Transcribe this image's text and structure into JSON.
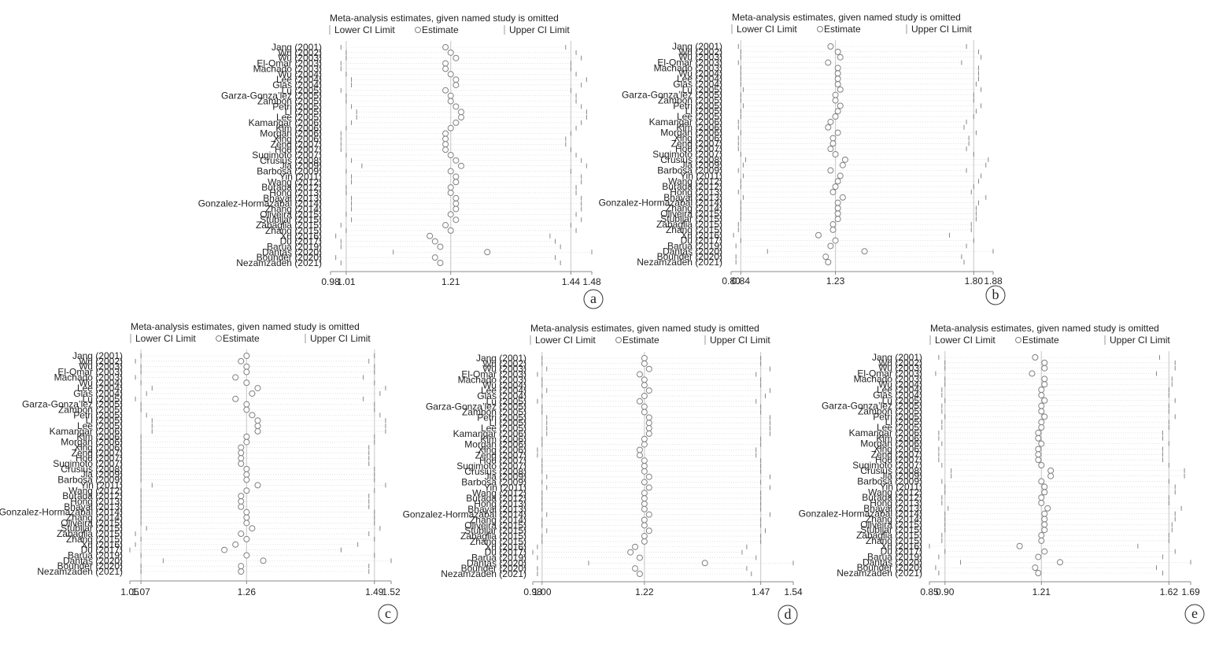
{
  "studies": [
    "Jang (2001)",
    "Wu (2002)",
    "Wu (2003)",
    "El-Omar (2003)",
    "Machado (2003)",
    "Wu (2004)",
    "Lee (2004)",
    "Glas (2004)",
    "Lu (2005)",
    "Garza-Gonza’lez (2005)",
    "Zambon (2005)",
    "Petri (2005)",
    "Li (2005)",
    "Lee (2005)",
    "Kamangar (2006)",
    "Kim (2006)",
    "Morgan (2006)",
    "Xing (2006)",
    "Zeng (2007)",
    "Hou (2007)",
    "Sugimoto (2007)",
    "Crusius (2008)",
    "Jia (2009)",
    "Barbosa (2009)",
    "Yin (2011)",
    "Wang (2012)",
    "Burada (2012)",
    "Hong (2013)",
    "Bhayal (2013)",
    "Gonzalez-Hormazabal (2014)",
    "Zhang (2014)",
    "Oliveira (2015)",
    "Stubljar (2015)",
    "Zabaglia (2015)",
    "Zhang (2015)",
    "Xu (2016)",
    "Du (2017)",
    "Barua (2019)",
    "Dantas (2020)",
    "Bounder (2020)",
    "Nezamzadeh (2021)"
  ],
  "chart_data": [
    {
      "type": "forest",
      "panel": "a",
      "title": "Meta-analysis estimates, given named study is omitted",
      "legend": {
        "lower": "Lower CI Limit",
        "estimate": "Estimate",
        "upper": "Upper CI Limit"
      },
      "xlim": [
        0.98,
        1.48
      ],
      "ticks": [
        {
          "v": 0.98,
          "label": "0.98"
        },
        {
          "v": 1.01,
          "label": "1.01"
        },
        {
          "v": 1.21,
          "label": "1.21"
        },
        {
          "v": 1.44,
          "label": "1.44"
        },
        {
          "v": 1.48,
          "label": "1.48"
        }
      ],
      "estimate": [
        1.2,
        1.21,
        1.22,
        1.2,
        1.2,
        1.21,
        1.22,
        1.22,
        1.2,
        1.21,
        1.21,
        1.22,
        1.23,
        1.23,
        1.22,
        1.21,
        1.2,
        1.2,
        1.2,
        1.2,
        1.21,
        1.22,
        1.23,
        1.21,
        1.22,
        1.22,
        1.21,
        1.21,
        1.22,
        1.22,
        1.22,
        1.21,
        1.22,
        1.2,
        1.21,
        1.17,
        1.18,
        1.19,
        1.28,
        1.18,
        1.19
      ],
      "lower": [
        1.0,
        1.01,
        1.01,
        1.0,
        1.0,
        1.01,
        1.02,
        1.02,
        1.0,
        1.01,
        1.01,
        1.02,
        1.03,
        1.03,
        1.02,
        1.01,
        1.0,
        1.0,
        1.0,
        1.0,
        1.01,
        1.02,
        1.04,
        1.01,
        1.02,
        1.02,
        1.01,
        1.01,
        1.02,
        1.02,
        1.02,
        1.01,
        1.02,
        1.0,
        1.01,
        0.99,
        1.0,
        1.0,
        1.1,
        0.99,
        1.0
      ],
      "upper": [
        1.43,
        1.45,
        1.46,
        1.44,
        1.44,
        1.45,
        1.47,
        1.46,
        1.44,
        1.45,
        1.45,
        1.46,
        1.47,
        1.47,
        1.46,
        1.45,
        1.44,
        1.43,
        1.43,
        1.44,
        1.45,
        1.46,
        1.47,
        1.44,
        1.46,
        1.46,
        1.45,
        1.45,
        1.46,
        1.46,
        1.46,
        1.45,
        1.46,
        1.44,
        1.45,
        1.4,
        1.41,
        1.42,
        1.48,
        1.41,
        1.42
      ],
      "reference": {
        "lower": 1.01,
        "estimate": 1.21,
        "upper": 1.44
      }
    },
    {
      "type": "forest",
      "panel": "b",
      "title": "Meta-analysis estimates, given named study is omitted",
      "legend": {
        "lower": "Lower CI Limit",
        "estimate": "Estimate",
        "upper": "Upper CI Limit"
      },
      "xlim": [
        0.8,
        1.88
      ],
      "ticks": [
        {
          "v": 0.8,
          "label": "0.80"
        },
        {
          "v": 0.84,
          "label": "0.84"
        },
        {
          "v": 1.23,
          "label": "1.23"
        },
        {
          "v": 1.8,
          "label": "1.80"
        },
        {
          "v": 1.88,
          "label": "1.88"
        }
      ],
      "estimate": [
        1.21,
        1.24,
        1.25,
        1.2,
        1.24,
        1.24,
        1.24,
        1.24,
        1.25,
        1.23,
        1.23,
        1.25,
        1.24,
        1.23,
        1.21,
        1.2,
        1.24,
        1.22,
        1.22,
        1.21,
        1.23,
        1.27,
        1.26,
        1.21,
        1.25,
        1.24,
        1.23,
        1.22,
        1.26,
        1.24,
        1.24,
        1.24,
        1.24,
        1.22,
        1.22,
        1.16,
        1.23,
        1.21,
        1.35,
        1.19,
        1.2
      ],
      "lower": [
        0.83,
        0.84,
        0.84,
        0.83,
        0.84,
        0.84,
        0.84,
        0.84,
        0.85,
        0.84,
        0.84,
        0.85,
        0.84,
        0.84,
        0.83,
        0.83,
        0.84,
        0.83,
        0.83,
        0.83,
        0.84,
        0.86,
        0.85,
        0.83,
        0.85,
        0.84,
        0.84,
        0.83,
        0.85,
        0.84,
        0.84,
        0.84,
        0.84,
        0.83,
        0.83,
        0.81,
        0.84,
        0.82,
        0.95,
        0.82,
        0.82
      ],
      "upper": [
        1.77,
        1.82,
        1.83,
        1.75,
        1.82,
        1.82,
        1.82,
        1.81,
        1.83,
        1.8,
        1.8,
        1.83,
        1.81,
        1.8,
        1.77,
        1.76,
        1.81,
        1.78,
        1.78,
        1.77,
        1.8,
        1.86,
        1.85,
        1.77,
        1.83,
        1.82,
        1.8,
        1.79,
        1.85,
        1.82,
        1.81,
        1.81,
        1.81,
        1.79,
        1.79,
        1.7,
        1.8,
        1.77,
        1.88,
        1.75,
        1.76
      ],
      "reference": {
        "lower": 0.84,
        "estimate": 1.23,
        "upper": 1.8
      }
    },
    {
      "type": "forest",
      "panel": "c",
      "title": "Meta-analysis estimates, given named study is omitted",
      "legend": {
        "lower": "Lower CI Limit",
        "estimate": "Estimate",
        "upper": "Upper CI Limit"
      },
      "xlim": [
        1.05,
        1.52
      ],
      "ticks": [
        {
          "v": 1.05,
          "label": "1.05"
        },
        {
          "v": 1.07,
          "label": "1.07"
        },
        {
          "v": 1.26,
          "label": "1.26"
        },
        {
          "v": 1.49,
          "label": "1.49"
        },
        {
          "v": 1.52,
          "label": "1.52"
        }
      ],
      "estimate": [
        1.26,
        1.25,
        1.26,
        1.26,
        1.24,
        1.26,
        1.28,
        1.27,
        1.24,
        1.26,
        1.26,
        1.27,
        1.28,
        1.28,
        1.28,
        1.26,
        1.26,
        1.25,
        1.25,
        1.25,
        1.25,
        1.26,
        1.26,
        1.26,
        1.28,
        1.26,
        1.25,
        1.25,
        1.25,
        1.26,
        1.26,
        1.26,
        1.27,
        1.25,
        1.26,
        1.24,
        1.22,
        1.26,
        1.29,
        1.25,
        1.25
      ],
      "lower": [
        1.07,
        1.06,
        1.07,
        1.07,
        1.06,
        1.07,
        1.09,
        1.08,
        1.06,
        1.07,
        1.07,
        1.08,
        1.09,
        1.09,
        1.09,
        1.07,
        1.07,
        1.07,
        1.07,
        1.07,
        1.07,
        1.07,
        1.07,
        1.07,
        1.09,
        1.07,
        1.07,
        1.07,
        1.07,
        1.07,
        1.07,
        1.07,
        1.08,
        1.06,
        1.07,
        1.06,
        1.05,
        1.07,
        1.11,
        1.07,
        1.07
      ],
      "upper": [
        1.49,
        1.48,
        1.49,
        1.49,
        1.47,
        1.49,
        1.51,
        1.5,
        1.47,
        1.49,
        1.49,
        1.5,
        1.51,
        1.51,
        1.51,
        1.49,
        1.49,
        1.48,
        1.48,
        1.48,
        1.48,
        1.49,
        1.49,
        1.49,
        1.51,
        1.49,
        1.48,
        1.48,
        1.48,
        1.49,
        1.49,
        1.49,
        1.5,
        1.48,
        1.49,
        1.46,
        1.43,
        1.49,
        1.52,
        1.48,
        1.48
      ],
      "reference": {
        "lower": 1.07,
        "estimate": 1.26,
        "upper": 1.49
      }
    },
    {
      "type": "forest",
      "panel": "d",
      "title": "Meta-analysis estimates, given named study is omitted",
      "legend": {
        "lower": "Lower CI Limit",
        "estimate": "Estimate",
        "upper": "Upper CI Limit"
      },
      "xlim": [
        0.98,
        1.54
      ],
      "ticks": [
        {
          "v": 0.98,
          "label": "0.98"
        },
        {
          "v": 1.0,
          "label": "1.00"
        },
        {
          "v": 1.22,
          "label": "1.22"
        },
        {
          "v": 1.47,
          "label": "1.47"
        },
        {
          "v": 1.54,
          "label": "1.54"
        }
      ],
      "estimate": [
        1.22,
        1.22,
        1.23,
        1.21,
        1.22,
        1.22,
        1.23,
        1.22,
        1.21,
        1.22,
        1.22,
        1.23,
        1.23,
        1.23,
        1.23,
        1.22,
        1.22,
        1.21,
        1.21,
        1.22,
        1.22,
        1.22,
        1.23,
        1.22,
        1.23,
        1.22,
        1.22,
        1.22,
        1.22,
        1.23,
        1.22,
        1.22,
        1.23,
        1.22,
        1.22,
        1.2,
        1.19,
        1.21,
        1.35,
        1.2,
        1.21
      ],
      "lower": [
        1.0,
        1.0,
        1.01,
        0.99,
        1.0,
        1.0,
        1.01,
        1.0,
        0.99,
        1.0,
        1.0,
        1.01,
        1.01,
        1.01,
        1.01,
        1.0,
        1.0,
        0.99,
        0.99,
        1.0,
        1.0,
        1.0,
        1.01,
        1.0,
        1.01,
        1.0,
        1.0,
        1.0,
        1.0,
        1.01,
        1.0,
        1.0,
        1.01,
        1.0,
        1.0,
        0.99,
        0.98,
        0.99,
        1.1,
        0.99,
        0.99
      ],
      "upper": [
        1.47,
        1.47,
        1.49,
        1.46,
        1.47,
        1.47,
        1.49,
        1.48,
        1.46,
        1.47,
        1.47,
        1.49,
        1.49,
        1.49,
        1.49,
        1.47,
        1.47,
        1.46,
        1.46,
        1.47,
        1.47,
        1.47,
        1.49,
        1.47,
        1.49,
        1.47,
        1.47,
        1.47,
        1.47,
        1.49,
        1.47,
        1.47,
        1.48,
        1.47,
        1.47,
        1.44,
        1.43,
        1.46,
        1.54,
        1.44,
        1.45
      ],
      "reference": {
        "lower": 1.0,
        "estimate": 1.22,
        "upper": 1.47
      }
    },
    {
      "type": "forest",
      "panel": "e",
      "title": "Meta-analysis estimates, given named study is omitted",
      "legend": {
        "lower": "Lower CI Limit",
        "estimate": "Estimate",
        "upper": "Upper CI Limit"
      },
      "xlim": [
        0.85,
        1.69
      ],
      "ticks": [
        {
          "v": 0.85,
          "label": "0.85"
        },
        {
          "v": 0.9,
          "label": "0.90"
        },
        {
          "v": 1.21,
          "label": "1.21"
        },
        {
          "v": 1.62,
          "label": "1.62"
        },
        {
          "v": 1.69,
          "label": "1.69"
        }
      ],
      "estimate": [
        1.19,
        1.22,
        1.22,
        1.18,
        1.22,
        1.22,
        1.21,
        1.21,
        1.22,
        1.21,
        1.21,
        1.22,
        1.21,
        1.21,
        1.2,
        1.2,
        1.21,
        1.2,
        1.2,
        1.2,
        1.21,
        1.24,
        1.24,
        1.21,
        1.22,
        1.22,
        1.21,
        1.21,
        1.23,
        1.22,
        1.22,
        1.22,
        1.22,
        1.21,
        1.21,
        1.14,
        1.22,
        1.2,
        1.27,
        1.19,
        1.2
      ],
      "lower": [
        0.88,
        0.9,
        0.9,
        0.87,
        0.9,
        0.9,
        0.89,
        0.89,
        0.9,
        0.89,
        0.89,
        0.9,
        0.89,
        0.89,
        0.88,
        0.88,
        0.89,
        0.88,
        0.88,
        0.88,
        0.89,
        0.92,
        0.92,
        0.89,
        0.9,
        0.9,
        0.89,
        0.89,
        0.91,
        0.9,
        0.9,
        0.9,
        0.9,
        0.89,
        0.89,
        0.85,
        0.9,
        0.88,
        0.95,
        0.87,
        0.88
      ],
      "upper": [
        1.59,
        1.64,
        1.64,
        1.58,
        1.63,
        1.63,
        1.62,
        1.62,
        1.64,
        1.62,
        1.62,
        1.64,
        1.62,
        1.62,
        1.6,
        1.6,
        1.62,
        1.6,
        1.6,
        1.6,
        1.62,
        1.67,
        1.67,
        1.62,
        1.64,
        1.64,
        1.62,
        1.62,
        1.66,
        1.64,
        1.64,
        1.63,
        1.63,
        1.62,
        1.62,
        1.52,
        1.64,
        1.6,
        1.69,
        1.58,
        1.6
      ],
      "reference": {
        "lower": 0.9,
        "estimate": 1.21,
        "upper": 1.62
      }
    }
  ]
}
